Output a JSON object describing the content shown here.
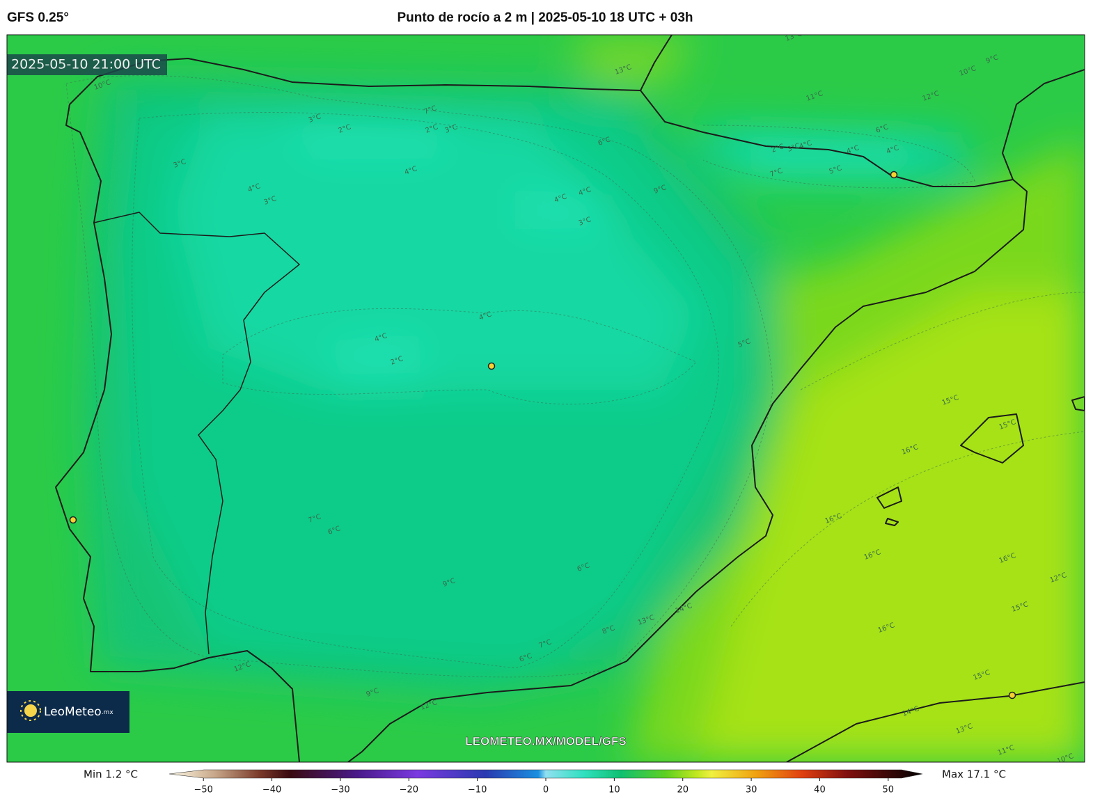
{
  "header": {
    "left": "GFS 0.25°",
    "title": "Punto de rocío a 2 m | 2025-05-10 18 UTC + 03h"
  },
  "map": {
    "valid_time": "2025-05-10 21:00 UTC",
    "watermark": "LEOMETEO.MX/MODEL/GFS",
    "logo": {
      "name": "LeoMeteo",
      "suffix": ".mx"
    },
    "contour_labels": [
      "13°C",
      "13°C",
      "10°C",
      "9°C",
      "11°C",
      "12°C",
      "10°C",
      "7°C",
      "3°C",
      "2°C",
      "2°C",
      "3°C",
      "4°C",
      "6°C",
      "9°C",
      "2°C",
      "3°C",
      "4°C",
      "7°C",
      "5°C",
      "4°C",
      "4°C",
      "3°C",
      "4°C",
      "3°C",
      "6°C",
      "4°C",
      "4°C",
      "3°C",
      "2°C",
      "4°C",
      "4°C",
      "5°C",
      "15°C",
      "15°C",
      "16°C",
      "16°C",
      "16°C",
      "16°C",
      "16°C",
      "14°C",
      "13°C",
      "12°C",
      "7°C",
      "6°C",
      "9°C",
      "9°C",
      "6°C",
      "7°C",
      "8°C",
      "6°C",
      "12°C",
      "15°C",
      "14°C",
      "12°C",
      "11°C",
      "13°C",
      "10°C",
      "15°C"
    ]
  },
  "colorbar": {
    "min_label": "Min 1.2 °C",
    "max_label": "Max 17.1 °C",
    "clim": [
      -55,
      55
    ],
    "ticks": [
      {
        "value": -50,
        "label": "−50"
      },
      {
        "value": -40,
        "label": "−40"
      },
      {
        "value": -30,
        "label": "−30"
      },
      {
        "value": -20,
        "label": "−20"
      },
      {
        "value": -10,
        "label": "−10"
      },
      0,
      10,
      20,
      30,
      40,
      50
    ]
  }
}
